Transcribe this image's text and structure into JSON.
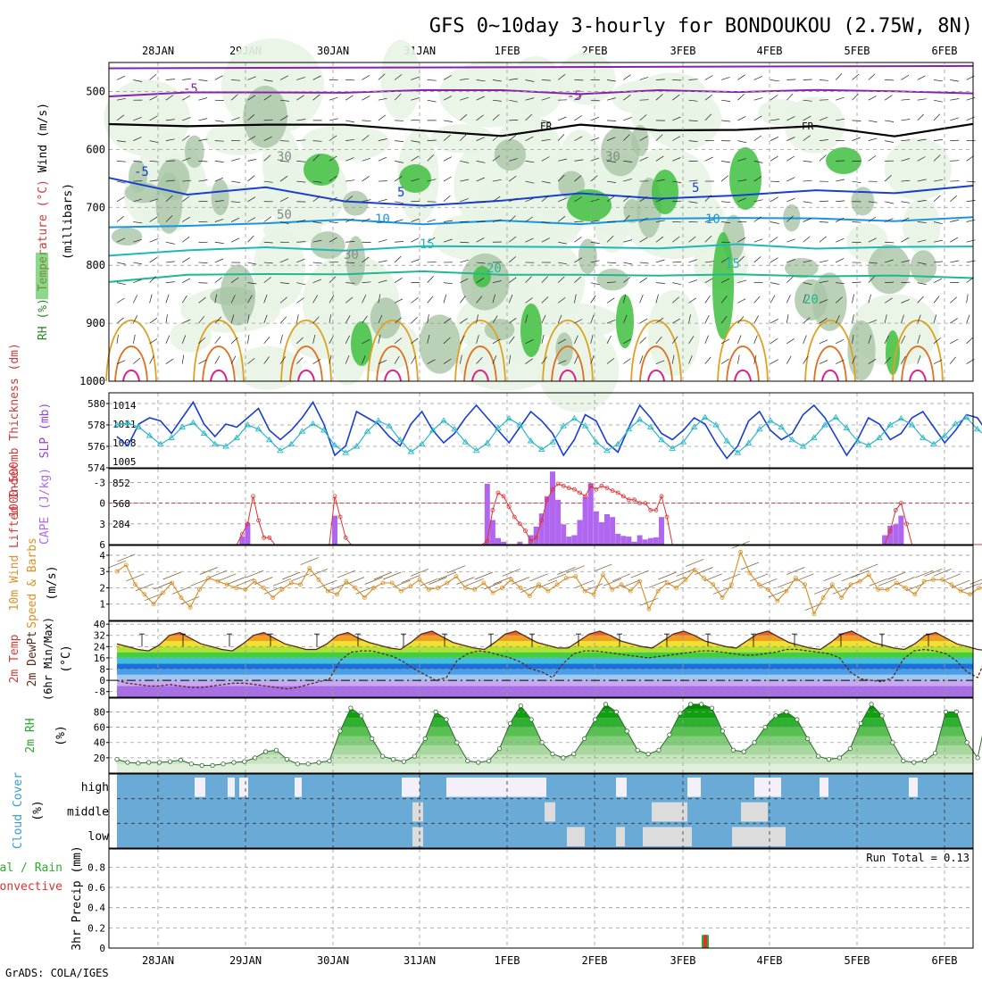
{
  "title": "GFS 0~10day 3-hourly for BONDOUKOU (2.75W, 8N)",
  "footer": "GrADS: COLA/IGES",
  "dates": [
    "28JAN",
    "29JAN",
    "30JAN",
    "31JAN",
    "1FEB",
    "2FEB",
    "3FEB",
    "4FEB",
    "5FEB",
    "6FEB"
  ],
  "colors": {
    "rh_light": "#e8f4e6",
    "rh_mid": "#a9c5a6",
    "rh_dark": "#3fbf3f",
    "wind": "#000000",
    "slp": "#1a3fd0",
    "thick": "#2ab7c8",
    "cape": "#b166f0",
    "li": "#e03030",
    "wspd": "#d98c20",
    "cloud": "#6aaad6"
  },
  "chart_data": [
    {
      "type": "contour",
      "panel": "upper-air",
      "ylabel_parts": [
        "RH (%)",
        "Temperature (°C)",
        "Wind (m/s)"
      ],
      "yaxis_label": "(millibars)",
      "y_ticks": [
        500,
        600,
        700,
        800,
        900,
        1000
      ],
      "contour_labels": [
        "-5",
        "-5",
        "FR",
        "FR",
        "-5",
        "5",
        "5",
        "10",
        "10",
        "15",
        "15",
        "20",
        "20",
        "30",
        "30",
        "50",
        "30"
      ],
      "isotherms": [
        {
          "label": "-5",
          "level": [
            505,
            500,
            503,
            500,
            498,
            500,
            502,
            500,
            500,
            498,
            500,
            500
          ]
        },
        {
          "label": "FR",
          "level": [
            560,
            560,
            558,
            560,
            565,
            575,
            560,
            565,
            570,
            560,
            575,
            560
          ]
        },
        {
          "label": "5",
          "level": [
            650,
            680,
            670,
            690,
            695,
            690,
            680,
            685,
            680,
            670,
            680,
            660
          ]
        },
        {
          "label": "10",
          "level": [
            735,
            730,
            725,
            725,
            725,
            720,
            725,
            722,
            720,
            720,
            720,
            715
          ]
        },
        {
          "label": "15",
          "level": [
            780,
            775,
            770,
            772,
            770,
            765,
            768,
            770,
            765,
            770,
            772,
            768
          ]
        },
        {
          "label": "20",
          "level": [
            830,
            820,
            815,
            818,
            815,
            812,
            815,
            820,
            818,
            815,
            820,
            820
          ]
        }
      ]
    },
    {
      "type": "line",
      "panel": "slp-thickness",
      "ylabel_left": "1000-500mb Thickness (dm)",
      "ylabel_right": "SLP (mb)",
      "left_ticks": [
        574,
        576,
        578,
        580
      ],
      "right_ticks": [
        1005,
        1008,
        1011,
        1014
      ],
      "series": [
        {
          "name": "SLP (mb)",
          "values": [
            1009,
            1007.5,
            1011,
            1012,
            1011.5,
            1009.5,
            1012,
            1014.5,
            1011,
            1009,
            1011,
            1010.5,
            1012,
            1013.5,
            1010,
            1008.5,
            1010,
            1012,
            1014.5,
            1011,
            1006,
            1007.5,
            1013,
            1012,
            1011,
            1009,
            1007.5,
            1011,
            1013,
            1010,
            1008,
            1009.5,
            1012,
            1014,
            1012,
            1010,
            1008,
            1010.5,
            1013,
            1011.5,
            1009.5,
            1006,
            1008.5,
            1012.5,
            1011.5,
            1008,
            1006.5,
            1010.5,
            1014,
            1012,
            1009.5,
            1008.5,
            1010,
            1012,
            1011,
            1008,
            1005.5,
            1007.5,
            1011.5,
            1013,
            1010,
            1008.5,
            1009.5,
            1012.5,
            1014,
            1012,
            1009,
            1006,
            1008.5,
            1012,
            1011,
            1008.5,
            1009.5,
            1012,
            1013,
            1010.5,
            1008,
            1010,
            1012.5,
            1012,
            1009.5
          ]
        },
        {
          "name": "Thickness (dm)",
          "values": [
            578,
            578.2,
            577.8,
            577,
            576.2,
            576.8,
            577.8,
            578.2,
            577.2,
            576.2,
            576,
            576.8,
            578,
            577.6,
            576.6,
            575.6,
            576.2,
            577.4,
            578.1,
            577.5,
            576.1,
            575.4,
            576,
            577.4,
            578.4,
            577.9,
            576.6,
            575.5,
            576.2,
            577.5,
            578.4,
            577.6,
            576.4,
            575.6,
            576.3,
            577.7,
            578.6,
            578,
            576.5,
            575.7,
            576.4,
            577.9,
            578.6,
            577.9,
            576.4,
            575.6,
            576.2,
            577.6,
            578.5,
            577.8,
            576.6,
            575.8,
            576.4,
            577.8,
            578.7,
            578,
            576.5,
            575.4,
            576.3,
            577.6,
            578.4,
            577.8,
            576.6,
            576,
            576.8,
            578,
            578.7,
            577.7,
            576.5,
            576.1,
            576.8,
            578,
            578.6,
            578,
            576.8,
            576.2,
            577,
            578.1,
            578.7,
            577.6,
            576.8
          ]
        }
      ]
    },
    {
      "type": "bar+line",
      "panel": "cape-li",
      "ylabel_left": "Lifted Index",
      "ylabel_right": "CAPE (J/kg)",
      "li_ticks": [
        "-3",
        "0",
        "3",
        "6"
      ],
      "cape_ticks": [
        284,
        568,
        852
      ],
      "series": [
        {
          "name": "CAPE (J/kg)",
          "values": [
            0,
            0,
            0,
            0,
            0,
            0,
            0,
            0,
            0,
            0,
            0,
            0,
            0,
            0,
            0,
            0,
            0,
            0,
            0,
            0,
            0,
            0,
            0,
            110,
            300,
            0,
            0,
            0,
            0,
            0,
            0,
            0,
            0,
            0,
            0,
            0,
            0,
            0,
            0,
            0,
            400,
            0,
            0,
            0,
            0,
            0,
            0,
            0,
            0,
            0,
            0,
            0,
            0,
            0,
            0,
            0,
            0,
            0,
            0,
            0,
            0,
            0,
            0,
            0,
            0,
            0,
            0,
            0,
            840,
            340,
            90,
            40,
            0,
            0,
            40,
            0,
            130,
            250,
            430,
            670,
            1010,
            620,
            280,
            110,
            130,
            340,
            660,
            850,
            460,
            310,
            420,
            380,
            150,
            120,
            110,
            40,
            130,
            70,
            90,
            100,
            380,
            0,
            0,
            0,
            0,
            0,
            0,
            0,
            0,
            0,
            0,
            0,
            0,
            0,
            0,
            0,
            0,
            0,
            0,
            0,
            0,
            0,
            0,
            0,
            0,
            0,
            0,
            0,
            0,
            0,
            0,
            0,
            0,
            0,
            0,
            0,
            0,
            0,
            0,
            0,
            0,
            130,
            260,
            280,
            400,
            0,
            0,
            0,
            0,
            0,
            0,
            0,
            0,
            0,
            0,
            0,
            0,
            0,
            0,
            0,
            40
          ]
        },
        {
          "name": "Lifted Index",
          "values": [
            6,
            6,
            6,
            6,
            6,
            6,
            6,
            6,
            6,
            6,
            6,
            6,
            6,
            6,
            6,
            6,
            6,
            6,
            6,
            6,
            6,
            6,
            6,
            4.5,
            3,
            -1,
            2.5,
            5,
            5,
            6,
            6,
            6,
            6,
            6,
            6,
            6,
            6,
            6,
            6,
            6,
            -1,
            2,
            5,
            6,
            6,
            6,
            6,
            6,
            6,
            6,
            6,
            6,
            6,
            6,
            6,
            6,
            6,
            6,
            6,
            6,
            6,
            6,
            6,
            6,
            6,
            6,
            6,
            6,
            5.5,
            1,
            -1.5,
            -1,
            0.5,
            2,
            3,
            4,
            5.5,
            5,
            2.5,
            -0.5,
            -2,
            -2.8,
            -2.5,
            -2.2,
            -2,
            -1.5,
            -1,
            -2.5,
            -2,
            -2.5,
            -2.2,
            -1.8,
            -1.5,
            -1,
            -0.5,
            -0.5,
            0,
            0,
            1,
            1,
            -1,
            2,
            6,
            6,
            6,
            6,
            6,
            6,
            6,
            6,
            6,
            6,
            6,
            6,
            6,
            6,
            6,
            6,
            6,
            6,
            6,
            6,
            6,
            6,
            6,
            6,
            6,
            6,
            6,
            6,
            6,
            6,
            6,
            6,
            6,
            6,
            6,
            6,
            6,
            6,
            6,
            6,
            4,
            1,
            0,
            3,
            6,
            6,
            6,
            6,
            6,
            6,
            6,
            6,
            6,
            6,
            6,
            6,
            6,
            6,
            2
          ]
        }
      ]
    },
    {
      "type": "line",
      "panel": "wind10m",
      "ylabel": "10m Wind Speed & Barbs (m/s)",
      "y_ticks": [
        1,
        2,
        3,
        4
      ],
      "series": [
        {
          "name": "10m Wind Speed (m/s)",
          "values": [
            3,
            3.4,
            2.2,
            1.6,
            1,
            1.7,
            2.3,
            1.4,
            0.8,
            1.9,
            2.6,
            2.4,
            2.2,
            2,
            1.9,
            2.4,
            2,
            1.4,
            1.9,
            2.3,
            2.2,
            3.2,
            2.5,
            1.8,
            1.6,
            2.4,
            2,
            1.4,
            2,
            2.3,
            2.3,
            1.8,
            2.1,
            2.5,
            1.9,
            2,
            2.3,
            2.7,
            2,
            1.9,
            2.3,
            1.7,
            2,
            2.5,
            2,
            1.5,
            2.2,
            1.8,
            2.2,
            2.6,
            2.7,
            1.8,
            1.6,
            2.8,
            1.9,
            2.2,
            1.8,
            2.4,
            0.7,
            1.8,
            2.3,
            2,
            2.5,
            3.1,
            2.6,
            2.2,
            1.4,
            2.2,
            4.2,
            2.9,
            2.2,
            1.9,
            1.2,
            1.8,
            2.6,
            2.2,
            0.4,
            1.4,
            2.2,
            1.4,
            2.2,
            2.4,
            2.8,
            1.9,
            1.9,
            2.3,
            2,
            1.6,
            2.4,
            2.5,
            2.5,
            2.2,
            1.8,
            1.6,
            2,
            2
          ]
        }
      ]
    },
    {
      "type": "area",
      "panel": "temp2m",
      "ylabel": "2m Temp 2m DewPt (6hr Min/Max) (°C)",
      "y_ticks": [
        -8,
        0,
        8,
        16,
        24,
        32,
        40
      ],
      "series": [
        {
          "name": "2m Temp (°C)",
          "values": [
            26,
            24,
            22,
            21,
            25,
            32,
            34,
            30,
            26,
            24,
            22,
            21,
            26,
            32,
            34,
            30,
            26,
            24,
            22,
            22,
            26,
            32,
            34,
            30,
            27,
            25,
            23,
            22,
            27,
            33,
            35,
            31,
            27,
            25,
            23,
            22,
            27,
            33,
            35,
            31,
            27,
            25,
            23,
            23,
            28,
            33,
            35,
            32,
            28,
            26,
            24,
            23,
            28,
            33,
            35,
            32,
            28,
            26,
            24,
            23,
            28,
            33,
            35,
            31,
            27,
            25,
            23,
            22,
            27,
            33,
            35,
            31,
            27,
            25,
            23,
            22,
            26,
            32,
            34,
            30,
            26,
            24,
            22,
            21
          ]
        },
        {
          "name": "2m DewPt (°C)",
          "values": [
            0,
            -2,
            -3,
            -4,
            -4,
            -3,
            -4,
            -5,
            -5,
            -4,
            -3,
            -2,
            -2,
            -3,
            -4,
            -5,
            -6,
            -5,
            -3,
            -1,
            1,
            14,
            20,
            21,
            21,
            19,
            17,
            13,
            8,
            4,
            0,
            2,
            14,
            19,
            21,
            20,
            18,
            16,
            13,
            8,
            6,
            2,
            12,
            19,
            21,
            21,
            20,
            19,
            18,
            17,
            16,
            17,
            18,
            19,
            20,
            21,
            21,
            20,
            19,
            18,
            18,
            19,
            20,
            22,
            22,
            21,
            20,
            19,
            16,
            6,
            1,
            0,
            -1,
            2,
            15,
            21,
            22,
            21,
            19,
            14,
            6,
            2,
            20
          ]
        }
      ]
    },
    {
      "type": "area",
      "panel": "rh2m",
      "ylabel": "2m RH (%)",
      "y_ticks": [
        20,
        40,
        60,
        80
      ],
      "series": [
        {
          "name": "2m RH (%)",
          "values": [
            18,
            14,
            13,
            14,
            14,
            15,
            17,
            12,
            10,
            10,
            12,
            14,
            15,
            20,
            28,
            30,
            18,
            12,
            12,
            14,
            16,
            55,
            85,
            75,
            45,
            22,
            18,
            15,
            22,
            45,
            80,
            70,
            40,
            16,
            14,
            16,
            32,
            65,
            88,
            70,
            40,
            25,
            20,
            25,
            45,
            70,
            90,
            80,
            55,
            30,
            25,
            30,
            50,
            78,
            90,
            90,
            85,
            55,
            30,
            28,
            40,
            60,
            75,
            80,
            70,
            45,
            22,
            18,
            20,
            32,
            65,
            90,
            75,
            40,
            16,
            14,
            16,
            26,
            80,
            80,
            40,
            20,
            84
          ]
        }
      ]
    },
    {
      "type": "heatmap",
      "panel": "cloud",
      "ylabel": "Cloud Cover (%)",
      "y_categories": [
        "high",
        "middle",
        "low"
      ]
    },
    {
      "type": "bar",
      "panel": "precip",
      "ylabel_left": "Total / Rain",
      "ylabel_left2": "Convective",
      "ylabel": "3hr Precip (mm)",
      "y_ticks": [
        0,
        0.2,
        0.4,
        0.6,
        0.8
      ],
      "annotation": "Run Total = 0.13",
      "series": [
        {
          "name": "Total",
          "category": "3FEB",
          "value": 0.13
        }
      ]
    }
  ]
}
